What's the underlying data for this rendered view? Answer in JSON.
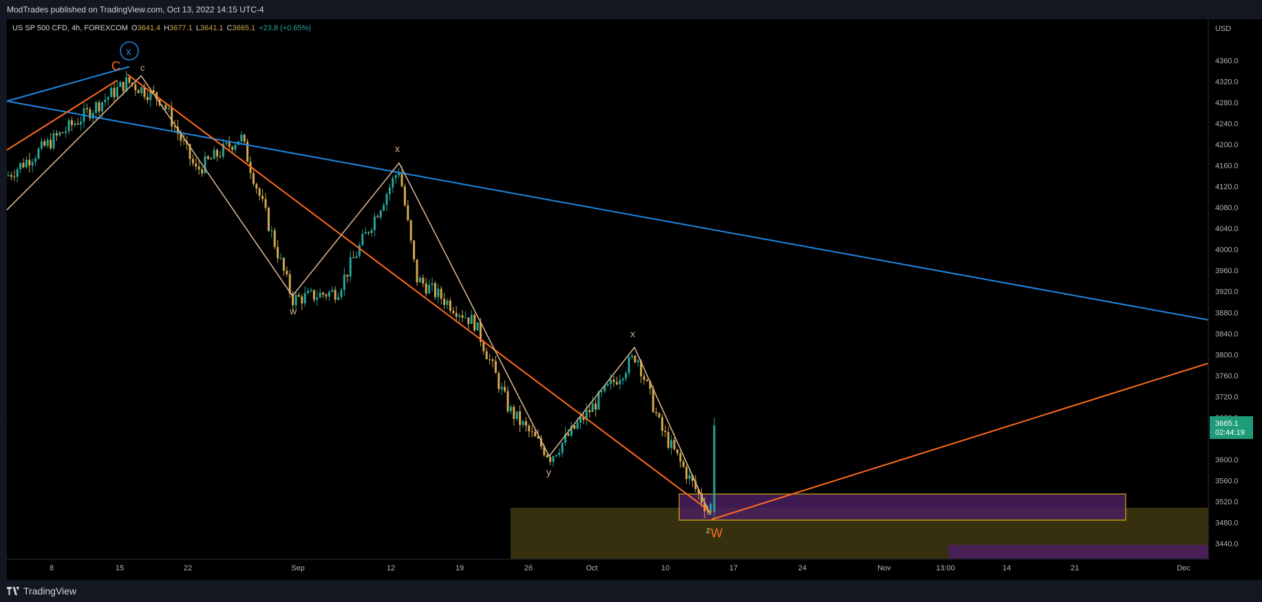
{
  "header": {
    "publish_text": "ModTrades published on TradingView.com, Oct 13, 2022 14:15 UTC-4"
  },
  "footer": {
    "brand": "TradingView",
    "brand_icon": "tradingview-logo-icon"
  },
  "legend": {
    "symbol": "US SP 500 CFD, 4h, FOREXCOM",
    "open_label": "O",
    "open": "3641.4",
    "high_label": "H",
    "high": "3677.1",
    "low_label": "L",
    "low": "3641.1",
    "close_label": "C",
    "close": "3665.1",
    "change": "+23.8 (+0.65%)"
  },
  "price_badge": {
    "price": "3665.1",
    "countdown": "02:44:19"
  },
  "colors": {
    "up": "#26a69a",
    "down": "#d1a84e",
    "blue_line": "#1e88e5",
    "orange_line": "#ff6d1f",
    "wave_line": "#d9b38c",
    "zone_olive": "#3a3310",
    "zone_purple": "#4a1f5e"
  },
  "chart_data": {
    "type": "candlestick",
    "symbol": "US SP 500 CFD",
    "interval": "4h",
    "currency_label": "USD",
    "y_ticks": [
      "4360.0",
      "4320.0",
      "4280.0",
      "4240.0",
      "4200.0",
      "4160.0",
      "4120.0",
      "4080.0",
      "4040.0",
      "4000.0",
      "3960.0",
      "3920.0",
      "3880.0",
      "3840.0",
      "3800.0",
      "3760.0",
      "3720.0",
      "3680.0",
      "3600.0",
      "3560.0",
      "3520.0",
      "3480.0",
      "3440.0"
    ],
    "ylim": [
      3410,
      4390
    ],
    "x_ticks": [
      "8",
      "15",
      "22",
      "Sep",
      "12",
      "19",
      "26",
      "Oct",
      "10",
      "17",
      "24",
      "Nov",
      "13:00",
      "14",
      "21",
      "Dec"
    ],
    "last_price": 3665.1,
    "price_path": [
      {
        "t": "Aug 05",
        "price": 4140
      },
      {
        "t": "Aug 16",
        "price": 4320
      },
      {
        "t": "Aug 19",
        "price": 4285
      },
      {
        "t": "Aug 24",
        "price": 4150
      },
      {
        "t": "Aug 26",
        "price": 4215
      },
      {
        "t": "Sep 01",
        "price": 3905
      },
      {
        "t": "Sep 07",
        "price": 3920
      },
      {
        "t": "Sep 12",
        "price": 4155
      },
      {
        "t": "Sep 14",
        "price": 3945
      },
      {
        "t": "Sep 21",
        "price": 3860
      },
      {
        "t": "Sep 23",
        "price": 3695
      },
      {
        "t": "Sep 30",
        "price": 3605
      },
      {
        "t": "Oct 04",
        "price": 3800
      },
      {
        "t": "Oct 07",
        "price": 3660
      },
      {
        "t": "Oct 13",
        "price": 3495
      },
      {
        "t": "Oct 13 close",
        "price": 3665.1
      }
    ],
    "annotations": {
      "waves": [
        {
          "label": "C",
          "color": "#ff6d1f"
        },
        {
          "label": "x",
          "color": "#d9b38c",
          "circled": true
        },
        {
          "label": "c",
          "color": "#d9b38c"
        },
        {
          "label": "x",
          "color": "#d9b38c"
        },
        {
          "label": "w",
          "color": "#d9b38c"
        },
        {
          "label": "x",
          "color": "#d9b38c"
        },
        {
          "label": "y",
          "color": "#d9b38c"
        },
        {
          "label": "z",
          "color": "#d9b38c"
        },
        {
          "label": "W",
          "color": "#ff6d1f"
        }
      ]
    }
  }
}
